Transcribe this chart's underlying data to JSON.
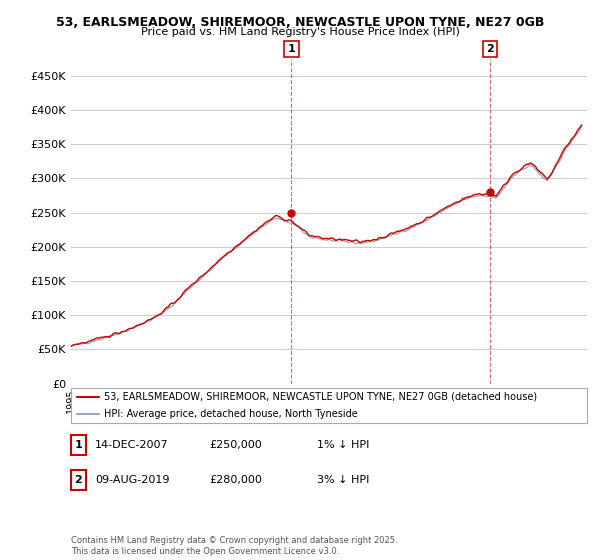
{
  "title_line1": "53, EARLSMEADOW, SHIREMOOR, NEWCASTLE UPON TYNE, NE27 0GB",
  "title_line2": "Price paid vs. HM Land Registry's House Price Index (HPI)",
  "ylim": [
    0,
    475000
  ],
  "yticks": [
    0,
    50000,
    100000,
    150000,
    200000,
    250000,
    300000,
    350000,
    400000,
    450000
  ],
  "ytick_labels": [
    "£0",
    "£50K",
    "£100K",
    "£150K",
    "£200K",
    "£250K",
    "£300K",
    "£350K",
    "£400K",
    "£450K"
  ],
  "legend_line1": "53, EARLSMEADOW, SHIREMOOR, NEWCASTLE UPON TYNE, NE27 0GB (detached house)",
  "legend_line2": "HPI: Average price, detached house, North Tyneside",
  "legend_color1": "#cc0000",
  "legend_color2": "#99aabb",
  "annotation1_label": "1",
  "annotation1_date": "14-DEC-2007",
  "annotation1_price": "£250,000",
  "annotation1_hpi": "1% ↓ HPI",
  "annotation2_label": "2",
  "annotation2_date": "09-AUG-2019",
  "annotation2_price": "£280,000",
  "annotation2_hpi": "3% ↓ HPI",
  "copyright_text": "Contains HM Land Registry data © Crown copyright and database right 2025.\nThis data is licensed under the Open Government Licence v3.0.",
  "background_color": "#ffffff",
  "grid_color": "#cccccc",
  "sale1_year": 2007.95,
  "sale1_price": 250000,
  "sale2_year": 2019.6,
  "sale2_price": 280000,
  "hpi_knots_x": [
    1995,
    1996,
    1997,
    1998,
    1999,
    2000,
    2001,
    2002,
    2003,
    2004,
    2005,
    2006,
    2007,
    2008,
    2009,
    2010,
    2011,
    2012,
    2013,
    2014,
    2015,
    2016,
    2017,
    2018,
    2019,
    2020,
    2021,
    2022,
    2023,
    2024,
    2025
  ],
  "hpi_knots_y": [
    55000,
    60000,
    67000,
    75000,
    85000,
    97000,
    115000,
    140000,
    162000,
    185000,
    205000,
    225000,
    242000,
    235000,
    215000,
    210000,
    208000,
    205000,
    210000,
    218000,
    228000,
    240000,
    255000,
    268000,
    275000,
    272000,
    305000,
    320000,
    295000,
    340000,
    375000
  ],
  "price_knots_x": [
    1995,
    1996,
    1997,
    1998,
    1999,
    2000,
    2001,
    2002,
    2003,
    2004,
    2005,
    2006,
    2007,
    2008,
    2009,
    2010,
    2011,
    2012,
    2013,
    2014,
    2015,
    2016,
    2017,
    2018,
    2019,
    2020,
    2021,
    2022,
    2023,
    2024,
    2025
  ],
  "price_knots_y": [
    56000,
    61000,
    68000,
    76000,
    86000,
    98000,
    117000,
    142000,
    164000,
    187000,
    207000,
    227000,
    245000,
    237000,
    217000,
    212000,
    210000,
    207000,
    212000,
    220000,
    230000,
    242000,
    257000,
    270000,
    278000,
    275000,
    308000,
    323000,
    298000,
    343000,
    378000
  ]
}
